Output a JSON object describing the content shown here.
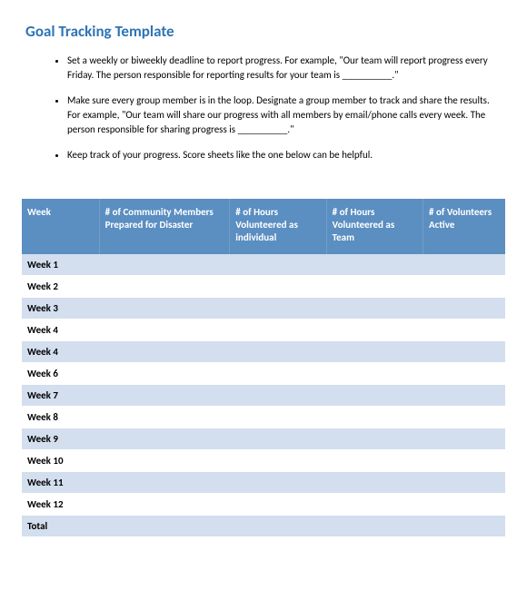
{
  "title": "Goal Tracking Template",
  "title_color": "#2e74b5",
  "bullets": [
    "Set a weekly or biweekly deadline to report progress.  For example, \"Our team will report progress every Friday.  The person responsible for reporting results for your team is __________.\"",
    "Make sure every group member is in the loop.  Designate a group member to track and share the results.  For example, \"Our team will share our progress with all members by email/phone calls every week.  The person responsible for sharing progress is __________.\"",
    "Keep track of your progress.  Score sheets like the one below can be helpful."
  ],
  "table": {
    "header_bg": "#5b8ec1",
    "row_bg_odd": "#d3deee",
    "row_bg_even": "#ffffff",
    "border_color": "#ffffff",
    "columns": [
      "Week",
      "# of Community Members Prepared for Disaster",
      "# of Hours Volunteered as individual",
      "# of Hours Volunteered as Team",
      "# of Volunteers Active"
    ],
    "rows": [
      "Week 1",
      "Week 2",
      "Week 3",
      "Week 4",
      "Week 4",
      "Week 6",
      "Week 7",
      "Week 8",
      "Week 9",
      "Week 10",
      "Week 11",
      "Week 12",
      "Total"
    ]
  }
}
